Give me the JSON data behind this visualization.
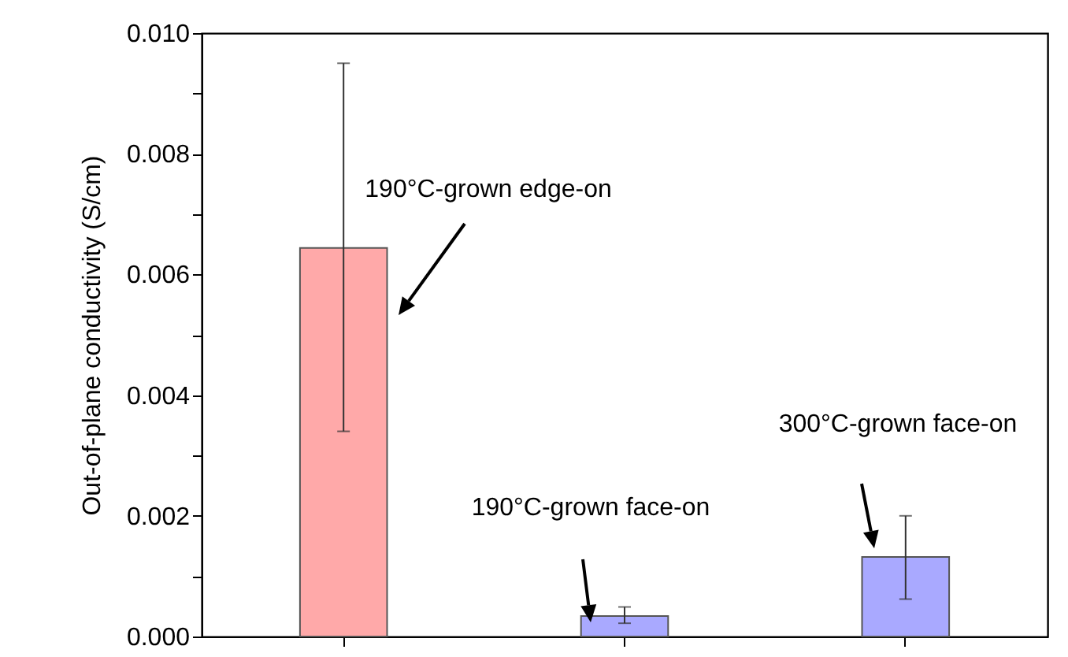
{
  "chart_data": {
    "type": "bar",
    "ylabel": "Out-of-plane conductivity (S/cm)",
    "categories": [
      null,
      null,
      null
    ],
    "values": [
      0.00644,
      0.00034,
      0.00132
    ],
    "colors": [
      "#ff4040",
      "#4040ff",
      "#4040ff"
    ],
    "errors": [
      [
        0.0034,
        0.0095
      ],
      [
        0.00022,
        0.00049
      ],
      [
        0.00062,
        0.002
      ]
    ],
    "ylim": [
      0,
      0.01
    ],
    "yticks": [
      {
        "value": 0,
        "label": "0.000"
      },
      {
        "value": 0.001,
        "label": null
      },
      {
        "value": 0.002,
        "label": "0.002"
      },
      {
        "value": 0.003,
        "label": null
      },
      {
        "value": 0.004,
        "label": "0.004"
      },
      {
        "value": 0.005,
        "label": null
      },
      {
        "value": 0.006,
        "label": "0.006"
      },
      {
        "value": 0.007,
        "label": null
      },
      {
        "value": 0.008,
        "label": "0.008"
      },
      {
        "value": 0.009,
        "label": null
      },
      {
        "value": 0.01,
        "label": "0.010"
      }
    ],
    "tick_labels": "y",
    "annotations": [
      "190°C-grown edge-on",
      "190°C-grown face-on",
      "300°C-grown face-on"
    ]
  }
}
